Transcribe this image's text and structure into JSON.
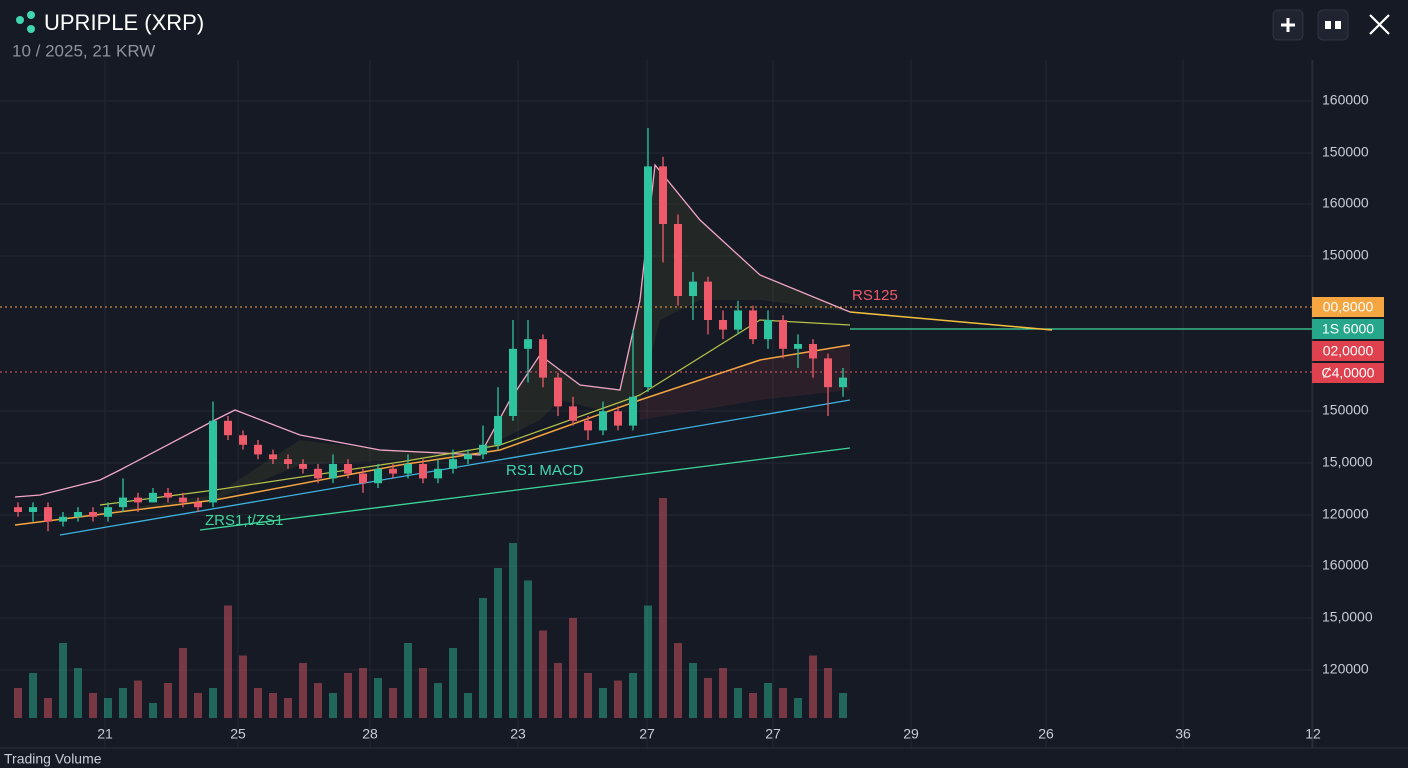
{
  "header": {
    "title": "UPRIPLE (XRP)",
    "subtitle": "10 / 2025, 21 KRW"
  },
  "chart_data": {
    "type": "candlestick",
    "ylim": [
      0,
      100
    ],
    "open": [
      11,
      10,
      11,
      8,
      9,
      10,
      9,
      11,
      13,
      12,
      14,
      13,
      12,
      12,
      29,
      26,
      24,
      22,
      21,
      20,
      19,
      17,
      20,
      18,
      16,
      19,
      18,
      20,
      17,
      19,
      21,
      22,
      24,
      30,
      44,
      46,
      38,
      32,
      29,
      27,
      31,
      28,
      36,
      82,
      70,
      55,
      58,
      50,
      48,
      52,
      46,
      50,
      44,
      45,
      42,
      36
    ],
    "high": [
      12,
      12,
      12,
      10,
      11,
      11,
      12,
      17,
      14,
      15,
      15,
      14,
      13,
      33,
      30,
      27,
      25,
      23,
      22,
      21,
      20,
      22,
      21,
      19,
      20,
      20,
      22,
      21,
      21,
      23,
      23,
      28,
      36,
      50,
      50,
      47,
      39,
      34,
      30,
      33,
      32,
      48,
      90,
      84,
      72,
      60,
      59,
      52,
      54,
      53,
      52,
      51,
      47,
      46,
      43,
      40
    ],
    "low": [
      9,
      8,
      6,
      7,
      8,
      8,
      8,
      10,
      10,
      12,
      12,
      11,
      10,
      11,
      25,
      23,
      21,
      20,
      19,
      18,
      16,
      16,
      17,
      14,
      15,
      17,
      17,
      16,
      16,
      18,
      20,
      21,
      23,
      29,
      37,
      36,
      30,
      28,
      25,
      26,
      27,
      27,
      35,
      62,
      53,
      50,
      47,
      46,
      47,
      45,
      44,
      42,
      40,
      38,
      30,
      34
    ],
    "close": [
      10,
      11,
      8,
      9,
      10,
      9,
      11,
      13,
      12,
      14,
      13,
      12,
      11,
      29,
      26,
      24,
      22,
      21,
      20,
      19,
      17,
      20,
      18,
      16,
      19,
      18,
      20,
      17,
      19,
      21,
      22,
      24,
      30,
      44,
      46,
      38,
      32,
      29,
      27,
      31,
      28,
      34,
      82,
      70,
      55,
      58,
      50,
      48,
      52,
      46,
      50,
      44,
      45,
      42,
      36,
      38
    ],
    "volume": [
      12,
      18,
      8,
      30,
      20,
      10,
      8,
      12,
      15,
      6,
      14,
      28,
      10,
      12,
      45,
      25,
      12,
      10,
      8,
      22,
      14,
      10,
      18,
      20,
      16,
      12,
      30,
      20,
      14,
      28,
      10,
      48,
      60,
      70,
      55,
      35,
      22,
      40,
      18,
      12,
      15,
      18,
      45,
      88,
      30,
      22,
      16,
      20,
      12,
      10,
      14,
      12,
      8,
      25,
      20,
      10
    ],
    "vlim": [
      0,
      100
    ],
    "up_color": "#2fc4a0",
    "down_color": "#ef5a6a",
    "price_axis_labels": [
      "160000",
      "150000",
      "160000",
      "150000",
      "150000",
      "15,0000",
      "120000",
      "160000",
      "15,0000",
      "120000"
    ],
    "price_badges": [
      "00,8000",
      "1S 6000",
      "02,0000",
      "Ȼ4,0000"
    ],
    "x_axis_labels": [
      "21",
      "25",
      "28",
      "23",
      "27",
      "27",
      "29",
      "26",
      "36",
      "12"
    ],
    "annotations": [
      "RS125",
      "RS1 MACD",
      "ZRS1,t/ZS1"
    ],
    "volume_label": "Trading Volume"
  }
}
